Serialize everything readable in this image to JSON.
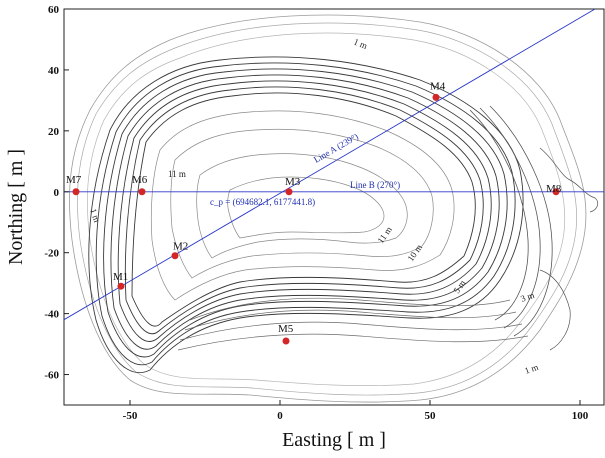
{
  "figure": {
    "xlabel": "Easting [ m ]",
    "ylabel": "Northing [ m ]",
    "x_ticks": [
      -50,
      0,
      50,
      100
    ],
    "y_ticks": [
      60,
      40,
      20,
      0,
      -20,
      -40,
      -60
    ],
    "x_range": [
      -72,
      108
    ],
    "y_range": [
      -70,
      60
    ],
    "line_color": "#2a38c8",
    "point_color": "#d32626",
    "contour_color": "#555555"
  },
  "points": [
    {
      "label": "M1",
      "x": -53,
      "y": -31
    },
    {
      "label": "M2",
      "x": -35,
      "y": -21
    },
    {
      "label": "M3",
      "x": 3,
      "y": 0
    },
    {
      "label": "M4",
      "x": 52,
      "y": 31
    },
    {
      "label": "M5",
      "x": 2,
      "y": -49
    },
    {
      "label": "M6",
      "x": -46,
      "y": 0
    },
    {
      "label": "M7",
      "x": -68,
      "y": 0
    },
    {
      "label": "M8",
      "x": 92,
      "y": 0
    }
  ],
  "lines": {
    "line_a": {
      "label": "Line A (239°)",
      "x1": -72,
      "y1": -42,
      "x2": 105,
      "y2": 60
    },
    "line_b": {
      "label": "Line B (270°)",
      "x1": -72,
      "y1": 0,
      "x2": 108,
      "y2": 0
    }
  },
  "center_label": "c_p = (694682.1, 6177441.8)",
  "contour_labels": [
    "1 m",
    "11 m",
    "11 m",
    "10 m",
    "5 m",
    "3 m",
    "1 m",
    "1 m"
  ]
}
